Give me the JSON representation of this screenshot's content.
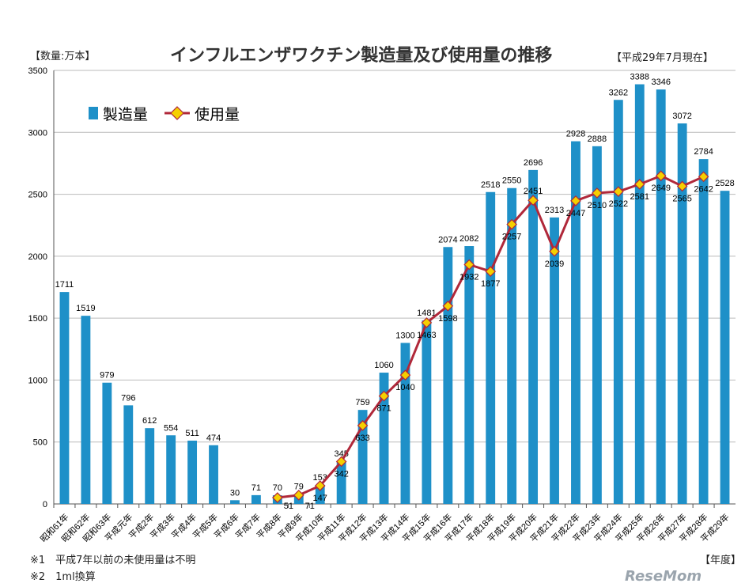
{
  "chart_data": {
    "type": "bar",
    "title": "インフルエンザワクチン製造量及び使用量の推移",
    "unit_label": "【数量:万本】",
    "as_of": "【平成29年7月現在】",
    "xlabel": "【年度】",
    "ylim": [
      0,
      3500
    ],
    "yticks": [
      0,
      500,
      1000,
      1500,
      2000,
      2500,
      3000,
      3500
    ],
    "grid": true,
    "legend_placement": "top-left",
    "categories": [
      "昭和61年",
      "昭和62年",
      "昭和63年",
      "平成元年",
      "平成2年",
      "平成3年",
      "平成4年",
      "平成5年",
      "平成6年",
      "平成7年",
      "平成8年",
      "平成9年",
      "平成10年",
      "平成11年",
      "平成12年",
      "平成13年",
      "平成14年",
      "平成15年",
      "平成16年",
      "平成17年",
      "平成18年",
      "平成19年",
      "平成20年",
      "平成21年",
      "平成22年",
      "平成23年",
      "平成24年",
      "平成25年",
      "平成26年",
      "平成27年",
      "平成28年",
      "平成29年"
    ],
    "series": [
      {
        "name": "製造量",
        "type": "bar",
        "color": "#1e90c8",
        "values": [
          1711,
          1519,
          979,
          796,
          612,
          554,
          511,
          474,
          30,
          71,
          70,
          79,
          153,
          345,
          759,
          1060,
          1300,
          1481,
          2074,
          2082,
          2518,
          2550,
          2696,
          2313,
          2928,
          2888,
          3262,
          3388,
          3346,
          3072,
          2784,
          2528
        ]
      },
      {
        "name": "使用量",
        "type": "line",
        "color": "#b0283a",
        "marker_color": "#f5d000",
        "values": [
          null,
          null,
          null,
          null,
          null,
          null,
          null,
          null,
          null,
          null,
          51,
          71,
          147,
          342,
          633,
          871,
          1040,
          1463,
          1598,
          1932,
          1877,
          2257,
          2451,
          2039,
          2447,
          2510,
          2522,
          2581,
          2649,
          2565,
          2642,
          null
        ]
      }
    ]
  },
  "notes": [
    "※1　平成7年以前の未使用量は不明",
    "※2　1ml換算"
  ],
  "logo": "ReseMom"
}
